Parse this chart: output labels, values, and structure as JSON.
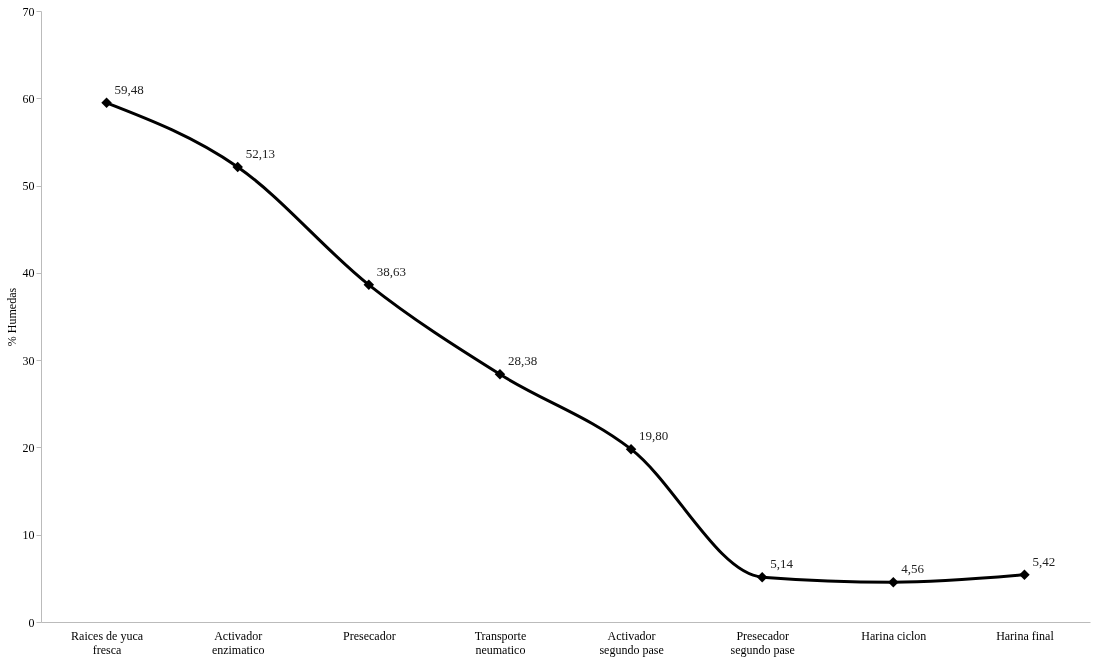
{
  "chart_data": {
    "type": "line",
    "categories": [
      "Raices de yuca\nfresca",
      "Activador\nenzimatico",
      "Presecador",
      "Transporte\nneumatico",
      "Activador\nsegundo pase",
      "Presecador\nsegundo pase",
      "Harina ciclon",
      "Harina final"
    ],
    "series": [
      {
        "color": "#000000",
        "values": [
          59.48,
          52.13,
          38.63,
          28.38,
          19.8,
          5.14,
          4.56,
          5.42
        ],
        "value_labels": [
          "59,48",
          "52,13",
          "38,63",
          "28,38",
          "19,80",
          "5,14",
          "4,56",
          "5,42"
        ]
      }
    ],
    "ylabel": "% Humedas",
    "ylim": [
      0,
      70
    ],
    "yticks": [
      0,
      10,
      20,
      30,
      40,
      50,
      60,
      70
    ],
    "marker": "diamond",
    "line_style": "solid",
    "grid": false
  }
}
